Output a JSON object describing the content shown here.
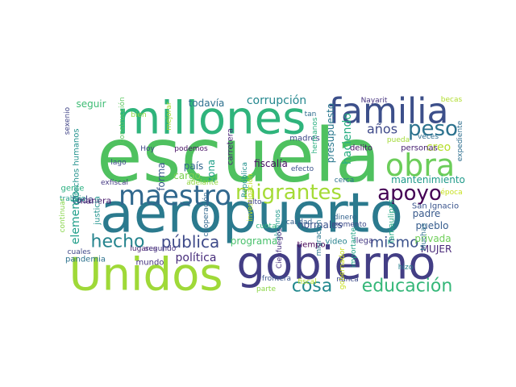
{
  "words": [
    {
      "text": "escuela",
      "color": "#4fc15f"
    },
    {
      "text": "aeropuerto",
      "color": "#2b7a8e"
    },
    {
      "text": "gobierno",
      "color": "#433e85"
    },
    {
      "text": "Unidos",
      "color": "#9fd938"
    },
    {
      "text": "millones",
      "color": "#2fb47c"
    },
    {
      "text": "familia",
      "color": "#3c4f8a"
    },
    {
      "text": "obra",
      "color": "#6ccd5a"
    },
    {
      "text": "maestro",
      "color": "#31688e"
    },
    {
      "text": "migrantes",
      "color": "#a5db36"
    },
    {
      "text": "apoyo",
      "color": "#440154"
    },
    {
      "text": "peso",
      "color": "#2c728e"
    },
    {
      "text": "hecho",
      "color": "#25848e"
    },
    {
      "text": "cosa",
      "color": "#23898e"
    },
    {
      "text": "educación",
      "color": "#35b779"
    },
    {
      "text": "pública",
      "color": "#3e4a89"
    },
    {
      "text": "mismo",
      "color": "#3b528b"
    },
    {
      "text": "años",
      "color": "#3e4989"
    },
    {
      "text": "corrupción",
      "color": "#24878e"
    },
    {
      "text": "política",
      "color": "#472d7b"
    },
    {
      "text": "creo",
      "color": "#b5de2b"
    },
    {
      "text": "haciendo",
      "color": "#27ad81"
    },
    {
      "text": "elemento",
      "color": "#1f9e89"
    },
    {
      "text": "mantenimiento",
      "color": "#1f9a8a"
    },
    {
      "text": "presupuesto",
      "color": "#2a788e"
    },
    {
      "text": "seguir",
      "color": "#3dbc74"
    },
    {
      "text": "todavía",
      "color": "#2d708e"
    },
    {
      "text": "fiscalía",
      "color": "#471063"
    },
    {
      "text": "programa",
      "color": "#4ac16d"
    },
    {
      "text": "país",
      "color": "#31668e"
    },
    {
      "text": "zona",
      "color": "#1fa088"
    },
    {
      "text": "forma",
      "color": "#39568c"
    },
    {
      "text": "cargo",
      "color": "#7ad151"
    },
    {
      "text": "normales",
      "color": "#3b518b"
    },
    {
      "text": "padre",
      "color": "#38598c"
    },
    {
      "text": "pueblo",
      "color": "#365c8d"
    },
    {
      "text": "privada",
      "color": "#6ece58"
    },
    {
      "text": "MUJER",
      "color": "#482878"
    },
    {
      "text": "toda",
      "color": "#3f4788"
    },
    {
      "text": "manera",
      "color": "#481a6c"
    },
    {
      "text": "gente",
      "color": "#29af7f"
    },
    {
      "text": "justicia",
      "color": "#20928c"
    },
    {
      "text": "San Ignacio",
      "color": "#3a548c"
    },
    {
      "text": "llega",
      "color": "#443983"
    },
    {
      "text": "tiempo",
      "color": "#440154"
    },
    {
      "text": "video",
      "color": "#26828e"
    },
    {
      "text": "derechos humanos",
      "color": "#21918c"
    },
    {
      "text": "carretera",
      "color": "#482576"
    },
    {
      "text": "madres",
      "color": "#3e4a89"
    },
    {
      "text": "mundo",
      "color": "#46337f"
    },
    {
      "text": "pandemia",
      "color": "#2c728e"
    },
    {
      "text": "delito",
      "color": "#471365"
    },
    {
      "text": "personas",
      "color": "#482173"
    },
    {
      "text": "Tamaulipas",
      "color": "#22a884"
    },
    {
      "text": "trabajo",
      "color": "#1e9c89"
    },
    {
      "text": "lugares",
      "color": "#481f70"
    },
    {
      "text": "segundo",
      "color": "#463480"
    },
    {
      "text": "frontera",
      "color": "#3a548c"
    },
    {
      "text": "cuales",
      "color": "#3f4788"
    },
    {
      "text": "construcción",
      "color": "#5ec962"
    },
    {
      "text": "continuar",
      "color": "#86d549"
    },
    {
      "text": "sexenio",
      "color": "#414487"
    },
    {
      "text": "bien",
      "color": "#8fd744"
    },
    {
      "text": "mejorar",
      "color": "#a8db34"
    },
    {
      "text": "Hoy",
      "color": "#404688"
    },
    {
      "text": "podemos",
      "color": "#471063"
    },
    {
      "text": "lago",
      "color": "#3e4989"
    },
    {
      "text": "exfiscal",
      "color": "#443983"
    },
    {
      "text": "adelante",
      "color": "#93d741"
    },
    {
      "text": "República",
      "color": "#21918c"
    },
    {
      "text": "investigación",
      "color": "#bddf26"
    },
    {
      "text": "cooperación",
      "color": "#31688e"
    },
    {
      "text": "efecto",
      "color": "#3b528b"
    },
    {
      "text": "cerca",
      "color": "#2d708e"
    },
    {
      "text": "alto",
      "color": "#414487"
    },
    {
      "text": "calidad",
      "color": "#355f8d"
    },
    {
      "text": "cuota",
      "color": "#2db27d"
    },
    {
      "text": "alumnos",
      "color": "#1f988b"
    },
    {
      "text": "Cienfuegos",
      "color": "#46307e"
    },
    {
      "text": "migración",
      "color": "#2a778e"
    },
    {
      "text": "momento",
      "color": "#3e4c8a"
    },
    {
      "text": "dinero",
      "color": "#33628d"
    },
    {
      "text": "importante",
      "color": "#20a386"
    },
    {
      "text": "Muchas",
      "color": "#2e6f8e"
    },
    {
      "text": "hizo",
      "color": "#26828e"
    },
    {
      "text": "gobernador",
      "color": "#cae11f"
    },
    {
      "text": "nunca",
      "color": "#3e4a89"
    },
    {
      "text": "parte",
      "color": "#8bd646"
    },
    {
      "text": "fiscal",
      "color": "#b8de29"
    },
    {
      "text": "época",
      "color": "#c8e020"
    },
    {
      "text": "expediente",
      "color": "#2e6e8e"
    },
    {
      "text": "becas",
      "color": "#b0dd2f"
    },
    {
      "text": "Nayarit",
      "color": "#46337f"
    },
    {
      "text": "tan",
      "color": "#2f6c8e"
    },
    {
      "text": "hermanos",
      "color": "#29af7f"
    },
    {
      "text": "veces",
      "color": "#2e6e8e"
    },
    {
      "text": "pueda",
      "color": "#a2da37"
    }
  ]
}
